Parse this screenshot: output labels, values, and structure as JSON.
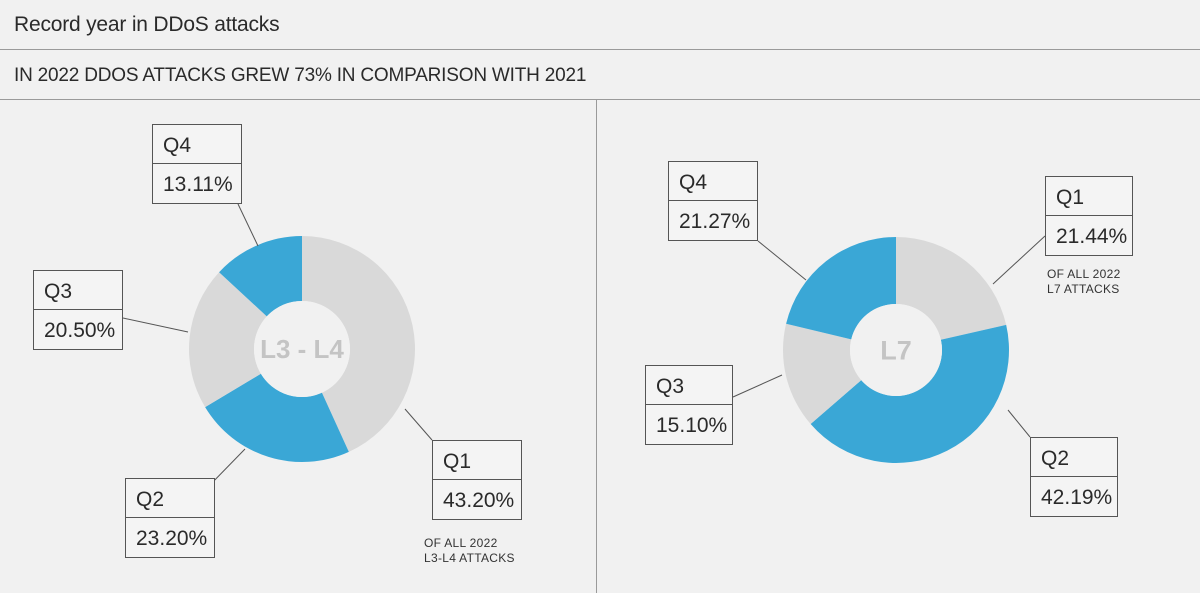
{
  "header": {
    "title": "Record year in DDoS attacks",
    "subtitle": "IN 2022 DDOS ATTACKS GREW 73% IN COMPARISON WITH 2021"
  },
  "colors": {
    "gray": "#d9d9d9",
    "blue": "#3aa7d6",
    "line": "#555555"
  },
  "chart_data": [
    {
      "type": "pie",
      "center_label": "L3 - L4",
      "note": [
        "OF ALL 2022",
        "L3-L4 ATTACKS"
      ],
      "slices": [
        {
          "name": "Q1",
          "value": 43.2,
          "label": "43.20%",
          "color": "#d9d9d9"
        },
        {
          "name": "Q2",
          "value": 23.2,
          "label": "23.20%",
          "color": "#3aa7d6"
        },
        {
          "name": "Q3",
          "value": 20.5,
          "label": "20.50%",
          "color": "#d9d9d9"
        },
        {
          "name": "Q4",
          "value": 13.11,
          "label": "13.11%",
          "color": "#3aa7d6"
        }
      ]
    },
    {
      "type": "pie",
      "center_label": "L7",
      "note": [
        "OF ALL 2022",
        "L7 ATTACKS"
      ],
      "slices": [
        {
          "name": "Q1",
          "value": 21.44,
          "label": "21.44%",
          "color": "#d9d9d9"
        },
        {
          "name": "Q2",
          "value": 42.19,
          "label": "42.19%",
          "color": "#3aa7d6"
        },
        {
          "name": "Q3",
          "value": 15.1,
          "label": "15.10%",
          "color": "#d9d9d9"
        },
        {
          "name": "Q4",
          "value": 21.27,
          "label": "21.27%",
          "color": "#3aa7d6"
        }
      ]
    }
  ]
}
